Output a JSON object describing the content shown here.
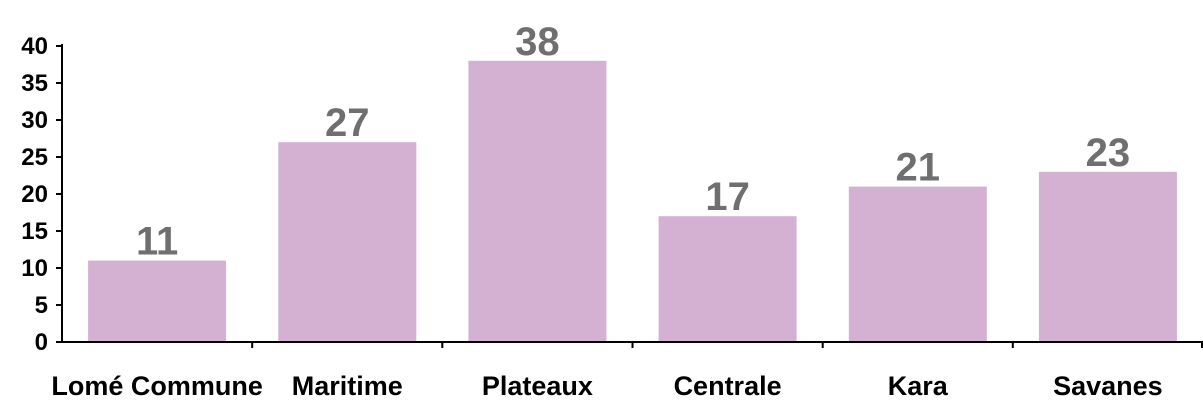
{
  "chart_data": {
    "type": "bar",
    "categories": [
      "Lomé Commune",
      "Maritime",
      "Plateaux",
      "Centrale",
      "Kara",
      "Savanes"
    ],
    "values": [
      11,
      27,
      38,
      17,
      21,
      23
    ],
    "data_labels": [
      "11",
      "27",
      "38",
      "17",
      "21",
      "23"
    ],
    "y_ticks": [
      "0",
      "5",
      "10",
      "15",
      "20",
      "25",
      "30",
      "35",
      "40"
    ],
    "ylim": [
      0,
      40
    ],
    "grid": false,
    "legend": "none",
    "colors": {
      "bar": "#d4b0d3",
      "data_label": "#6f6f6f",
      "axis": "#000000"
    }
  }
}
